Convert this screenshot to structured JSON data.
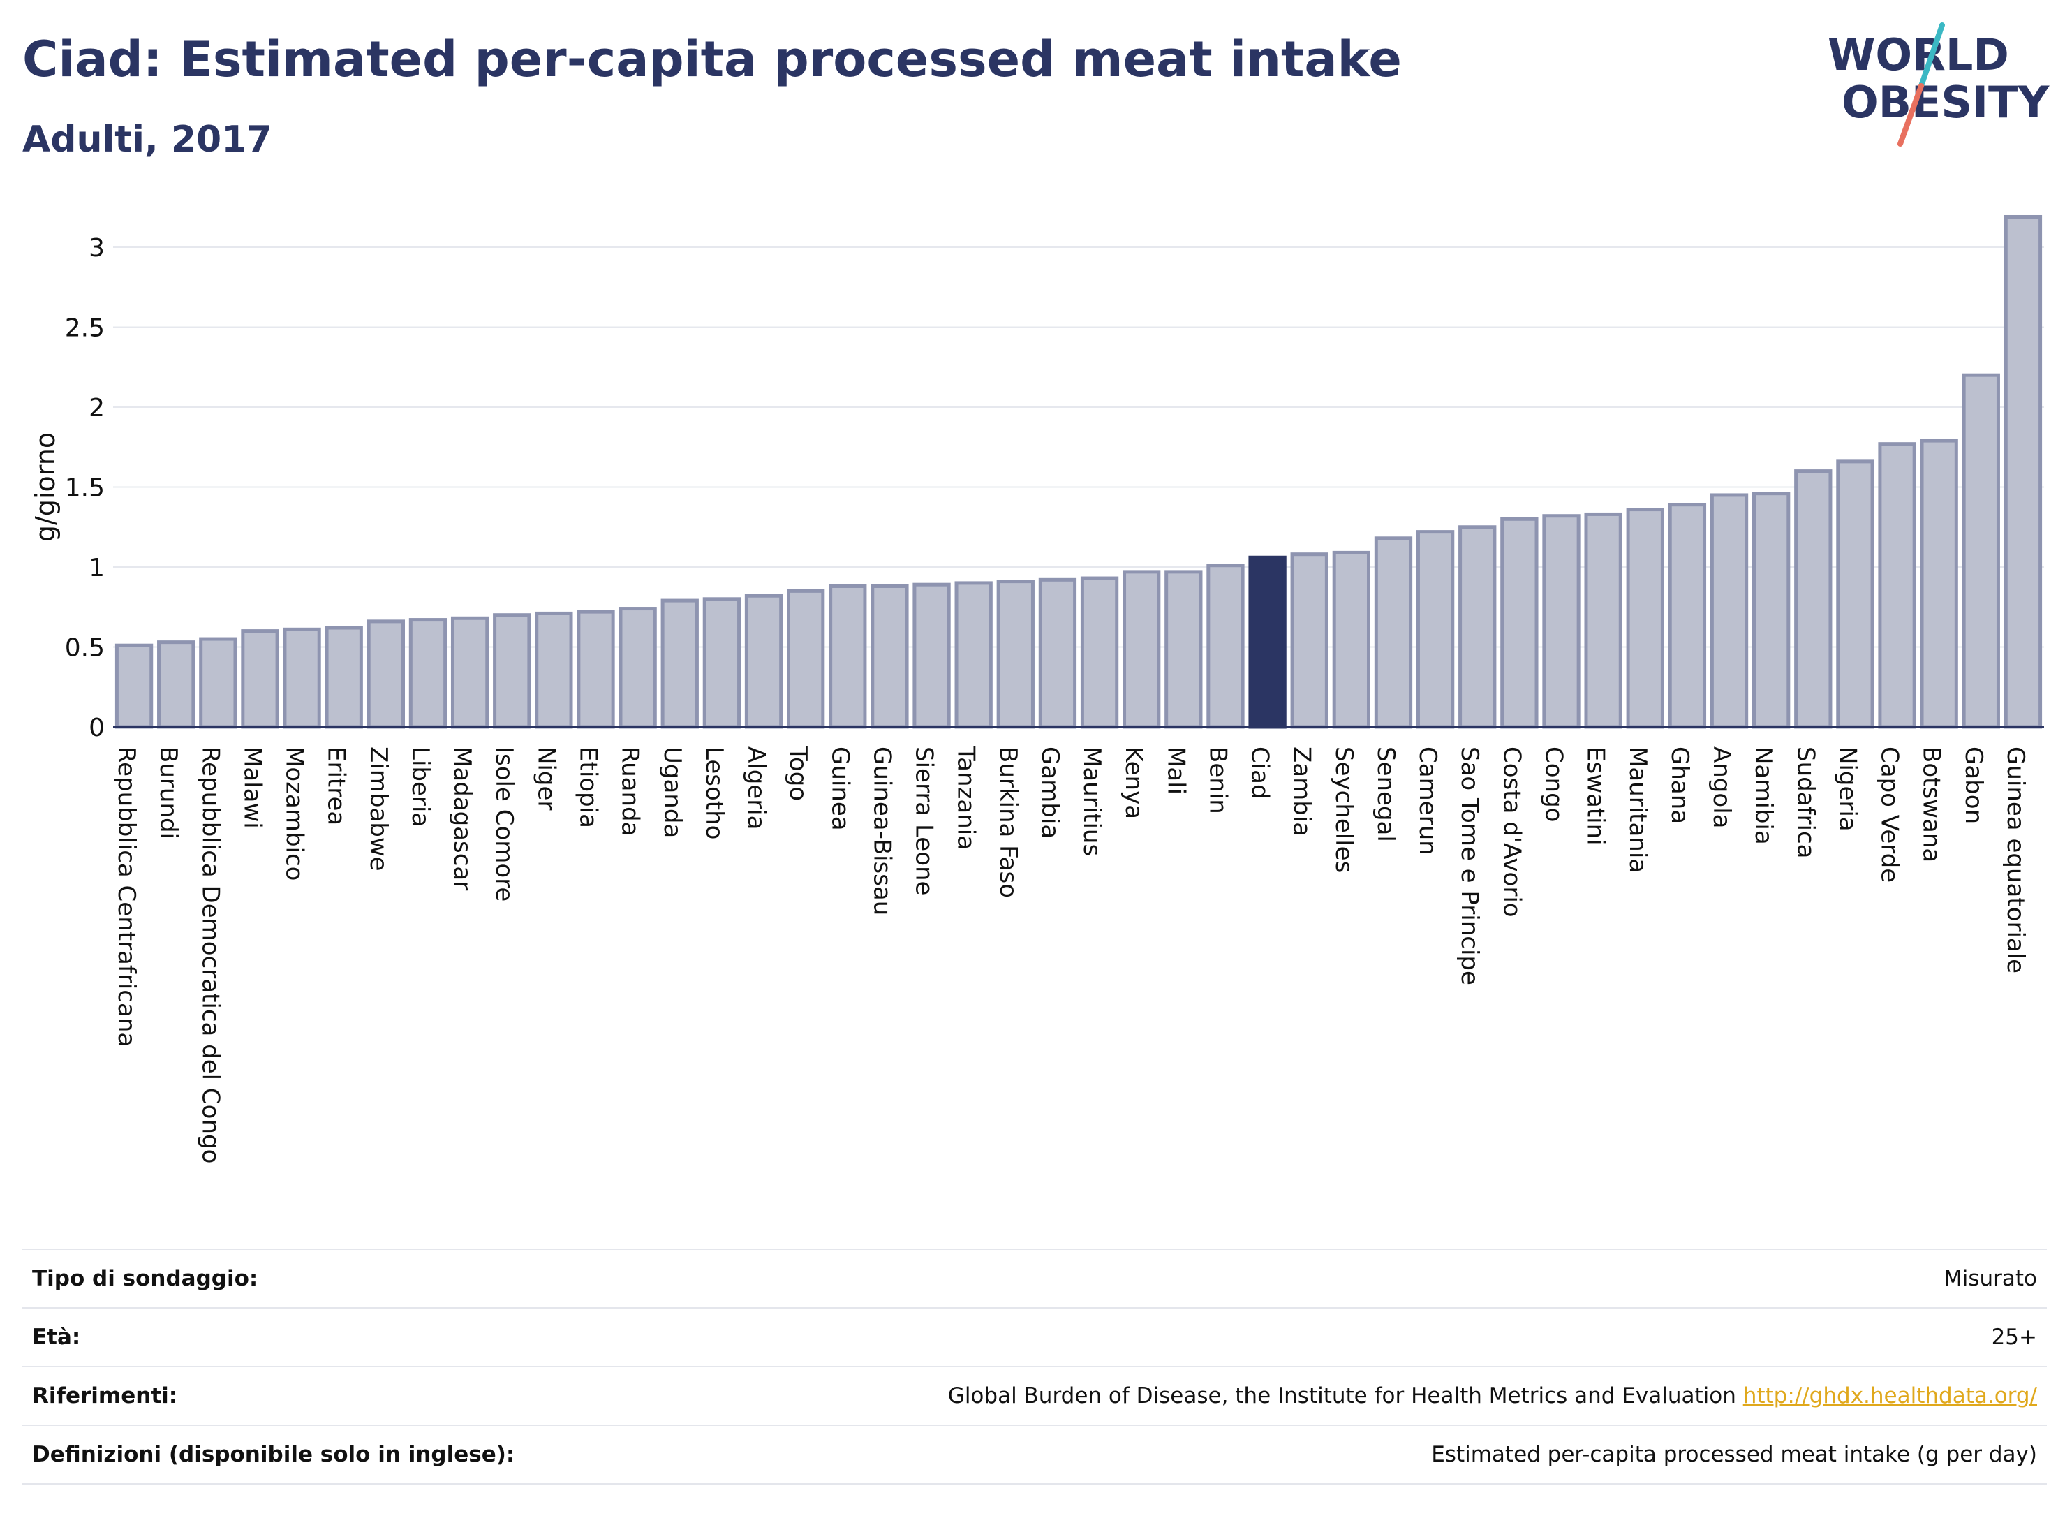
{
  "title": "Ciad: Estimated per-capita processed meat intake",
  "subtitle": "Adulti, 2017",
  "logo": {
    "line1": "WORLD",
    "line2": "OBESITY"
  },
  "chart_data": {
    "type": "bar",
    "ylabel": "g/giorno",
    "ylim": [
      0,
      3.25
    ],
    "yticks": [
      0,
      0.5,
      1,
      1.5,
      2,
      2.5,
      3
    ],
    "ytick_labels": [
      "0",
      "0.5",
      "1",
      "1.5",
      "2",
      "2.5",
      "3"
    ],
    "grid": true,
    "highlight": "Ciad",
    "colors": {
      "bar": "#bcc0cf",
      "bar_edge": "#8e94b0",
      "highlight": "#2b3563"
    },
    "categories": [
      "Repubblica Centrafricana",
      "Burundi",
      "Repubblica Democratica del Congo",
      "Malawi",
      "Mozambico",
      "Eritrea",
      "Zimbabwe",
      "Liberia",
      "Madagascar",
      "Isole Comore",
      "Niger",
      "Etiopia",
      "Ruanda",
      "Uganda",
      "Lesotho",
      "Algeria",
      "Togo",
      "Guinea",
      "Guinea-Bissau",
      "Sierra Leone",
      "Tanzania",
      "Burkina Faso",
      "Gambia",
      "Mauritius",
      "Kenya",
      "Mali",
      "Benin",
      "Ciad",
      "Zambia",
      "Seychelles",
      "Senegal",
      "Camerun",
      "Sao Tome e Principe",
      "Costa d'Avorio",
      "Congo",
      "Eswatini",
      "Mauritania",
      "Ghana",
      "Angola",
      "Namibia",
      "Sudafrica",
      "Nigeria",
      "Capo Verde",
      "Botswana",
      "Gabon",
      "Guinea equatoriale"
    ],
    "values": [
      0.51,
      0.53,
      0.55,
      0.6,
      0.61,
      0.62,
      0.66,
      0.67,
      0.68,
      0.7,
      0.71,
      0.72,
      0.74,
      0.79,
      0.8,
      0.82,
      0.85,
      0.88,
      0.88,
      0.89,
      0.9,
      0.91,
      0.92,
      0.93,
      0.97,
      0.97,
      1.01,
      1.06,
      1.08,
      1.09,
      1.18,
      1.22,
      1.25,
      1.3,
      1.32,
      1.33,
      1.36,
      1.39,
      1.45,
      1.46,
      1.6,
      1.66,
      1.77,
      1.79,
      2.2,
      3.19
    ]
  },
  "meta": [
    {
      "label": "Tipo di sondaggio:",
      "value": "Misurato"
    },
    {
      "label": "Età:",
      "value": "25+"
    },
    {
      "label": "Riferimenti:",
      "value": "Global Burden of Disease, the Institute for Health Metrics and Evaluation",
      "link": "http://ghdx.healthdata.org/"
    },
    {
      "label": "Definizioni (disponibile solo in inglese):",
      "value": "Estimated per-capita processed meat intake (g per day)"
    }
  ]
}
